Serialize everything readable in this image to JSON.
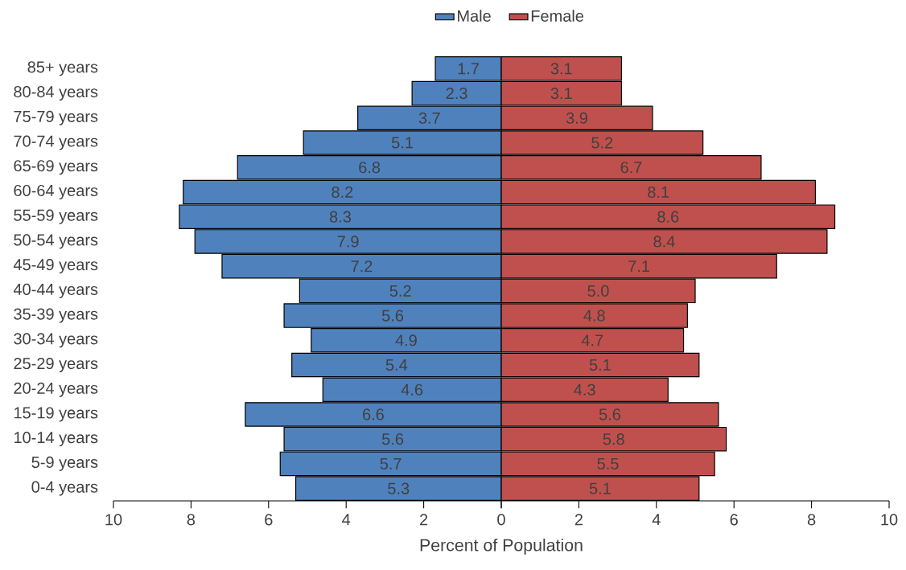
{
  "chart_data": [
    {
      "type": "bar",
      "orientation": "horizontal",
      "xlabel": "Percent of Population",
      "categories": [
        "85+ years",
        "80-84 years",
        "75-79 years",
        "70-74 years",
        "65-69 years",
        "60-64 years",
        "55-59 years",
        "50-54 years",
        "45-49 years",
        "40-44 years",
        "35-39 years",
        "30-34 years",
        "25-29 years",
        "20-24 years",
        "15-19 years",
        "10-14 years",
        "5-9 years",
        "0-4 years"
      ],
      "series": [
        {
          "name": "Male",
          "color": "#4f81bd",
          "values": [
            1.7,
            2.3,
            3.7,
            5.1,
            6.8,
            8.2,
            8.3,
            7.9,
            7.2,
            5.2,
            5.6,
            4.9,
            5.4,
            4.6,
            6.6,
            5.6,
            5.7,
            5.3
          ],
          "value_labels": [
            "1.7",
            "2.3",
            "3.7",
            "5.1",
            "6.8",
            "8.2",
            "8.3",
            "7.9",
            "7.2",
            "5.2",
            "5.6",
            "4.9",
            "5.4",
            "4.6",
            "6.6",
            "5.6",
            "5.7",
            "5.3"
          ]
        }
      ],
      "xlim": [
        10,
        0
      ],
      "xticks": [
        10,
        8,
        6,
        4,
        2,
        0
      ],
      "legend": "top right"
    },
    {
      "type": "bar",
      "orientation": "horizontal",
      "categories": [
        null,
        null,
        null,
        null,
        null,
        null,
        null,
        null,
        null,
        null,
        null,
        null,
        null,
        null,
        null,
        null,
        null,
        null
      ],
      "series": [
        {
          "name": "Female",
          "color": "#c0504d",
          "values": [
            3.1,
            3.1,
            3.9,
            5.2,
            6.7,
            8.1,
            8.6,
            8.4,
            7.1,
            5.0,
            4.8,
            4.7,
            5.1,
            4.3,
            5.6,
            5.8,
            5.5,
            5.1
          ],
          "value_labels": [
            "3.1",
            "3.1",
            "3.9",
            "5.2",
            "6.7",
            "8.1",
            "8.6",
            "8.4",
            "7.1",
            "5.0",
            "4.8",
            "4.7",
            "5.1",
            "4.3",
            "5.6",
            "5.8",
            "5.5",
            "5.1"
          ]
        }
      ],
      "xlim": [
        0,
        10
      ],
      "xticks": [
        {
          "value": 0,
          "label": null
        },
        2,
        4,
        6,
        8,
        10
      ],
      "legend": "top left",
      "tick_labels": "x"
    }
  ]
}
